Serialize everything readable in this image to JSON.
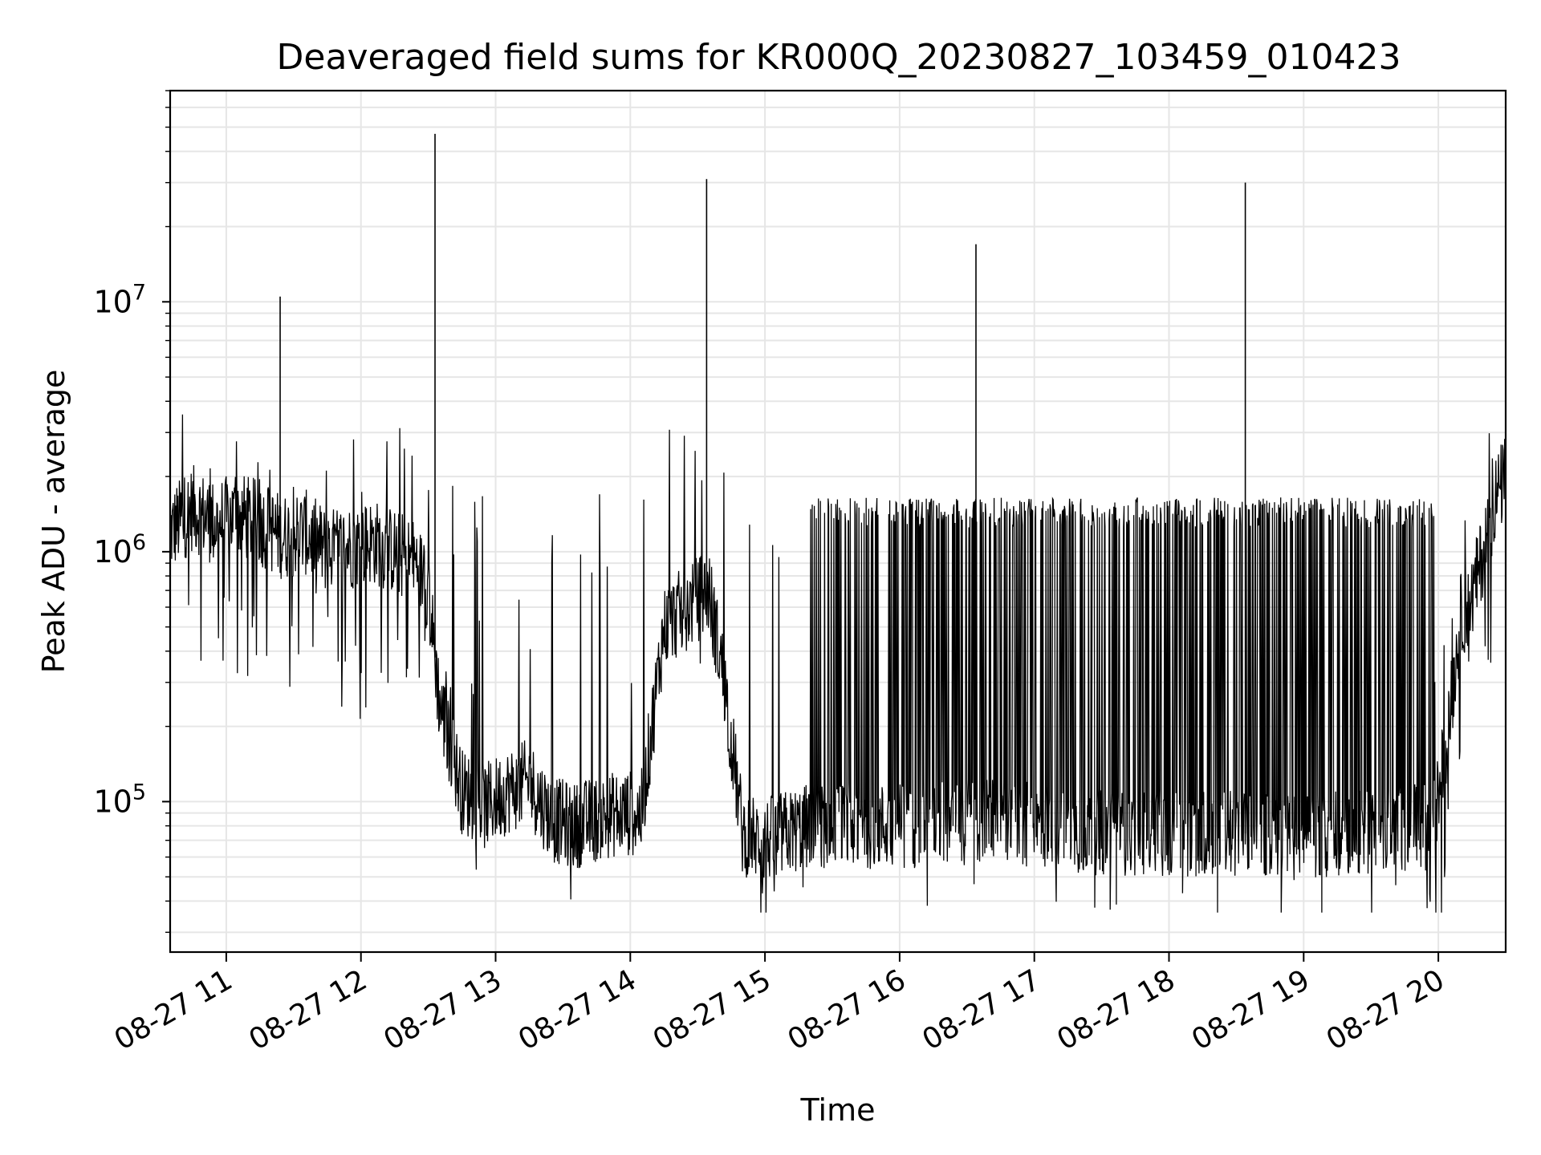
{
  "chart_data": {
    "type": "line",
    "title": "Deaveraged field sums for KR000Q_20230827_103459_010423",
    "xlabel": "Time",
    "ylabel": "Peak ADU - average",
    "y_scale": "log",
    "ylim": [
      25000,
      70000000
    ],
    "xlim": [
      "2023-08-27 10:35",
      "2023-08-27 20:30"
    ],
    "grid": true,
    "line_color": "#000000",
    "grid_color": "#e6e6e6",
    "x_ticks": [
      {
        "label": "08-27 11",
        "time": "2023-08-27 11:00"
      },
      {
        "label": "08-27 12",
        "time": "2023-08-27 12:00"
      },
      {
        "label": "08-27 13",
        "time": "2023-08-27 13:00"
      },
      {
        "label": "08-27 14",
        "time": "2023-08-27 14:00"
      },
      {
        "label": "08-27 15",
        "time": "2023-08-27 15:00"
      },
      {
        "label": "08-27 16",
        "time": "2023-08-27 16:00"
      },
      {
        "label": "08-27 17",
        "time": "2023-08-27 17:00"
      },
      {
        "label": "08-27 18",
        "time": "2023-08-27 18:00"
      },
      {
        "label": "08-27 19",
        "time": "2023-08-27 19:00"
      },
      {
        "label": "08-27 20",
        "time": "2023-08-27 20:00"
      }
    ],
    "y_ticks": [
      {
        "base": "10",
        "exp": "5",
        "value": 100000
      },
      {
        "base": "10",
        "exp": "6",
        "value": 1000000
      },
      {
        "base": "10",
        "exp": "7",
        "value": 10000000
      }
    ],
    "series": [
      {
        "points": [
          [
            "2023-08-27 10:35",
            1200000
          ],
          [
            "2023-08-27 10:45",
            1500000
          ],
          [
            "2023-08-27 10:55",
            1300000
          ],
          [
            "2023-08-27 11:05",
            1400000
          ],
          [
            "2023-08-27 11:15",
            1300000
          ],
          [
            "2023-08-27 11:25",
            1150000
          ],
          [
            "2023-08-27 11:35",
            1200000
          ],
          [
            "2023-08-27 11:45",
            1000000
          ],
          [
            "2023-08-27 11:55",
            1050000
          ],
          [
            "2023-08-27 12:05",
            1100000
          ],
          [
            "2023-08-27 12:15",
            1000000
          ],
          [
            "2023-08-27 12:25",
            900000
          ],
          [
            "2023-08-27 12:30",
            700000
          ],
          [
            "2023-08-27 12:35",
            250000
          ],
          [
            "2023-08-27 12:45",
            110000
          ],
          [
            "2023-08-27 12:55",
            95000
          ],
          [
            "2023-08-27 13:05",
            110000
          ],
          [
            "2023-08-27 13:15",
            120000
          ],
          [
            "2023-08-27 13:25",
            85000
          ],
          [
            "2023-08-27 13:35",
            80000
          ],
          [
            "2023-08-27 13:45",
            85000
          ],
          [
            "2023-08-27 13:55",
            90000
          ],
          [
            "2023-08-27 14:05",
            90000
          ],
          [
            "2023-08-27 14:15",
            500000
          ],
          [
            "2023-08-27 14:25",
            600000
          ],
          [
            "2023-08-27 14:35",
            700000
          ],
          [
            "2023-08-27 14:42",
            300000
          ],
          [
            "2023-08-27 14:50",
            75000
          ],
          [
            "2023-08-27 15:00",
            70000
          ],
          [
            "2023-08-27 15:10",
            75000
          ],
          [
            "2023-08-27 15:20",
            80000
          ],
          [
            "2023-08-27 15:30",
            80000
          ],
          [
            "2023-08-27 16:00",
            80000
          ],
          [
            "2023-08-27 16:30",
            85000
          ],
          [
            "2023-08-27 17:00",
            80000
          ],
          [
            "2023-08-27 17:30",
            75000
          ],
          [
            "2023-08-27 18:00",
            75000
          ],
          [
            "2023-08-27 18:30",
            75000
          ],
          [
            "2023-08-27 19:00",
            72000
          ],
          [
            "2023-08-27 19:30",
            75000
          ],
          [
            "2023-08-27 19:58",
            80000
          ],
          [
            "2023-08-27 20:05",
            220000
          ],
          [
            "2023-08-27 20:10",
            550000
          ],
          [
            "2023-08-27 20:15",
            650000
          ],
          [
            "2023-08-27 20:20",
            1000000
          ],
          [
            "2023-08-27 20:25",
            1600000
          ],
          [
            "2023-08-27 20:30",
            2000000
          ]
        ]
      }
    ],
    "spikes": [
      [
        "2023-08-27 11:24",
        10500000
      ],
      [
        "2023-08-27 12:33",
        47000000
      ],
      [
        "2023-08-27 14:34",
        31000000
      ],
      [
        "2023-08-27 16:34",
        17000000
      ],
      [
        "2023-08-27 18:34",
        30000000
      ]
    ]
  }
}
